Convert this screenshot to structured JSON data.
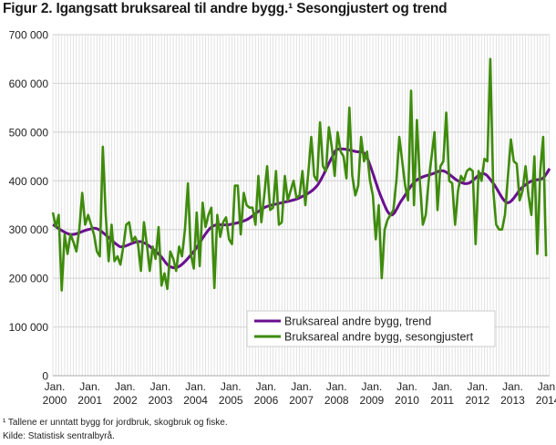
{
  "chart_data": {
    "type": "line",
    "title": "Figur 2. Igangsatt bruksareal til andre bygg.¹ Sesongjustert og trend",
    "xlabel": "",
    "ylabel": "",
    "ylim": [
      0,
      700000
    ],
    "yticks": [
      0,
      100000,
      200000,
      300000,
      400000,
      500000,
      600000,
      700000
    ],
    "ytick_labels": [
      "0",
      "100 000",
      "200 000",
      "300 000",
      "400 000",
      "500 000",
      "600 000",
      "700 000"
    ],
    "xlim": [
      2000,
      2014.1
    ],
    "xtick_prefix": "Jan.",
    "xtick_labels": [
      "2000",
      "2001",
      "2002",
      "2003",
      "2004",
      "2005",
      "2006",
      "2007",
      "2008",
      "2009",
      "2010",
      "2011",
      "2012",
      "2013",
      "2014"
    ],
    "grid": true,
    "legend_position": "bottom-center",
    "series": [
      {
        "name": "Bruksareal andre bygg, trend",
        "color": "#6a0f8e",
        "x": [
          2000.0,
          2000.5,
          2001.0,
          2001.3,
          2001.8,
          2002.0,
          2002.5,
          2003.0,
          2003.3,
          2003.6,
          2004.0,
          2004.5,
          2005.0,
          2005.5,
          2006.0,
          2006.5,
          2007.0,
          2007.5,
          2007.9,
          2008.1,
          2008.6,
          2008.9,
          2009.3,
          2009.6,
          2009.9,
          2010.3,
          2010.8,
          2011.1,
          2011.5,
          2011.8,
          2012.2,
          2012.5,
          2012.9,
          2013.3,
          2013.6,
          2013.9,
          2014.1
        ],
        "y": [
          310000,
          290000,
          300000,
          300000,
          270000,
          265000,
          275000,
          250000,
          225000,
          225000,
          255000,
          305000,
          310000,
          320000,
          345000,
          355000,
          365000,
          390000,
          445000,
          465000,
          460000,
          450000,
          370000,
          330000,
          360000,
          400000,
          415000,
          420000,
          400000,
          395000,
          415000,
          395000,
          355000,
          385000,
          400000,
          405000,
          425000
        ]
      },
      {
        "name": "Bruksareal andre bygg, sesongjustert",
        "color": "#3e8b0b",
        "start": 2000.0,
        "step": "month",
        "values": [
          335000,
          305000,
          330000,
          175000,
          290000,
          250000,
          290000,
          275000,
          255000,
          300000,
          375000,
          310000,
          330000,
          310000,
          290000,
          255000,
          245000,
          470000,
          330000,
          235000,
          310000,
          235000,
          245000,
          228000,
          265000,
          310000,
          315000,
          275000,
          285000,
          270000,
          215000,
          315000,
          270000,
          215000,
          265000,
          240000,
          305000,
          185000,
          210000,
          178000,
          255000,
          240000,
          215000,
          265000,
          245000,
          300000,
          395000,
          250000,
          220000,
          335000,
          225000,
          355000,
          305000,
          330000,
          345000,
          180000,
          330000,
          285000,
          315000,
          325000,
          280000,
          270000,
          390000,
          390000,
          290000,
          375000,
          350000,
          345000,
          345000,
          310000,
          410000,
          315000,
          370000,
          430000,
          340000,
          345000,
          420000,
          310000,
          315000,
          410000,
          360000,
          380000,
          400000,
          365000,
          370000,
          420000,
          350000,
          415000,
          490000,
          410000,
          400000,
          520000,
          430000,
          420000,
          510000,
          470000,
          410000,
          500000,
          460000,
          450000,
          405000,
          550000,
          410000,
          370000,
          390000,
          490000,
          440000,
          460000,
          400000,
          370000,
          280000,
          350000,
          200000,
          300000,
          320000,
          330000,
          340000,
          400000,
          490000,
          440000,
          390000,
          360000,
          585000,
          350000,
          525000,
          400000,
          310000,
          330000,
          400000,
          450000,
          500000,
          340000,
          430000,
          440000,
          540000,
          400000,
          395000,
          310000,
          380000,
          410000,
          400000,
          420000,
          425000,
          420000,
          270000,
          420000,
          400000,
          445000,
          440000,
          650000,
          380000,
          310000,
          300000,
          300000,
          330000,
          410000,
          485000,
          440000,
          435000,
          360000,
          380000,
          430000,
          370000,
          330000,
          450000,
          250000,
          420000,
          490000,
          245000
        ]
      }
    ]
  },
  "footnotes": {
    "note": "¹ Tallene er unntatt bygg for jordbruk, skogbruk og fiske.",
    "source": "Kilde: Statistisk sentralbyrå."
  }
}
